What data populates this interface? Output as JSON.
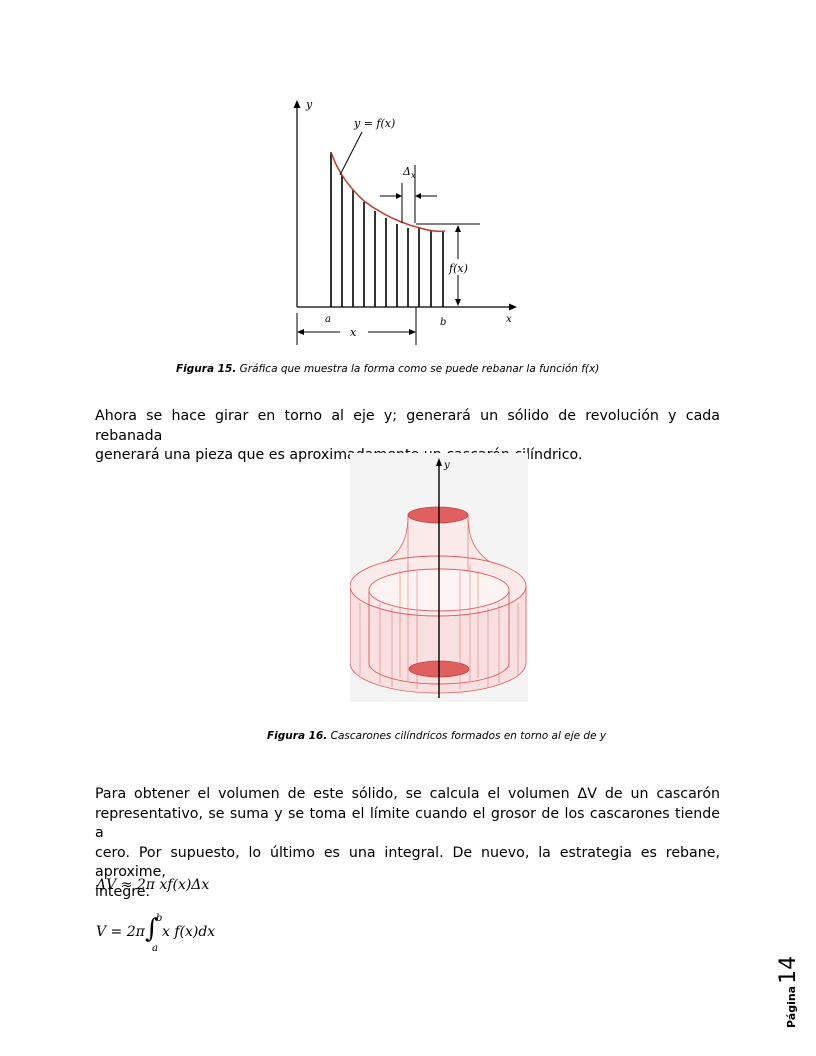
{
  "figure15": {
    "labels": {
      "y_axis": "y",
      "x_axis": "x",
      "curve": "y = f(x)",
      "delta": "Δ",
      "delta_sub": "x",
      "fx": "f(x)",
      "a": "a",
      "b": "b",
      "x_dim": "x"
    },
    "caption_bold": "Figura 15.",
    "caption_text": " Gráfica que muestra la forma como se puede rebanar la función f(x)"
  },
  "paragraph1": {
    "line1": "Ahora se hace girar en torno al eje y; generará un sólido de revolución y cada rebanada",
    "line2": "generará una pieza que es aproximadamente un cascarón cilíndrico."
  },
  "figure16": {
    "labels": {
      "y_axis": "y"
    },
    "caption_bold": "Figura 16.",
    "caption_text": " Cascarones cilíndricos formados en torno al eje de y"
  },
  "paragraph2": {
    "line1": "Para obtener el volumen de este sólido, se calcula el volumen ΔV de un cascarón",
    "line2": "representativo, se suma y se toma el límite cuando el grosor de los cascarones tiende a",
    "line3": "cero. Por supuesto, lo último es una integral. De nuevo, la estrategia es rebane, aproxime,",
    "line4": "integre."
  },
  "equations": {
    "eq1": "ΔV ≈ 2π xf(x)Δx",
    "eq2_lhs": "V = 2π",
    "eq2_integral": "∫",
    "eq2_upper": "b",
    "eq2_lower": "a",
    "eq2_rhs": "x f(x)dx"
  },
  "footer": {
    "page_word": "Página",
    "page_number": "14"
  },
  "colors": {
    "curve_red": "#c0392b",
    "solid_red": "#e06060",
    "solid_fill": "#f7d9d9",
    "figure_bg": "#f4f4f4"
  }
}
